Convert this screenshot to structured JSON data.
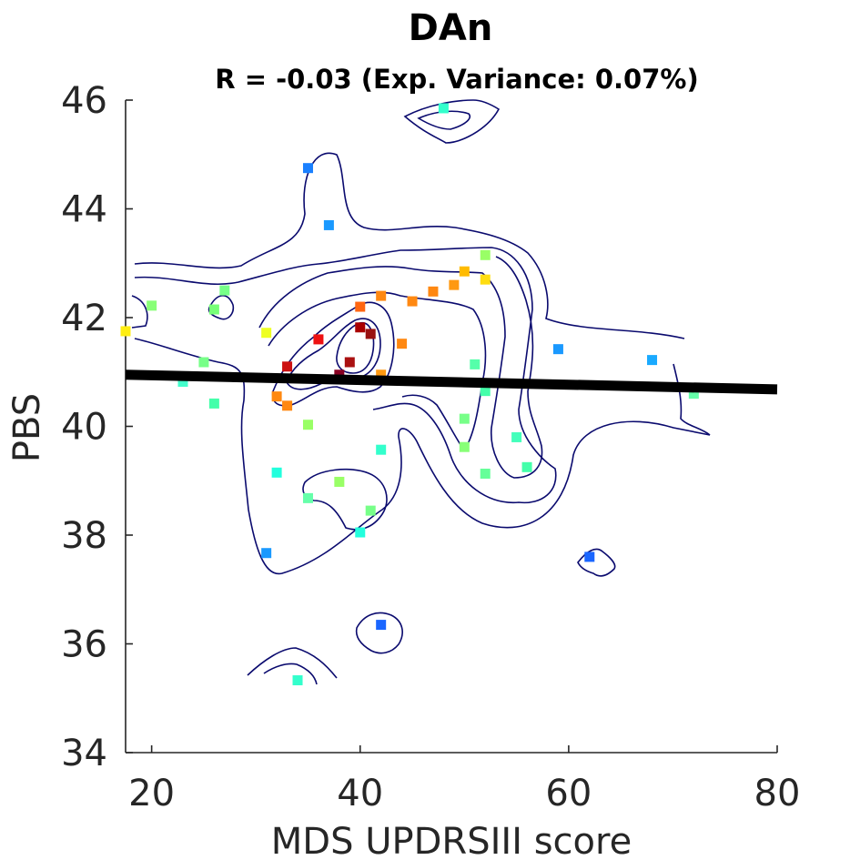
{
  "chart_data": {
    "type": "scatter",
    "title": "DAn",
    "subtitle": "R = -0.03 (Exp. Variance: 0.07%)",
    "xlabel": "MDS UPDRSIII score",
    "ylabel": "PBS",
    "xlim": [
      17.5,
      80
    ],
    "ylim": [
      34,
      46
    ],
    "xticks": [
      "20",
      "40",
      "60",
      "80"
    ],
    "yticks": [
      "34",
      "36",
      "38",
      "40",
      "42",
      "44",
      "46"
    ],
    "regression_line": {
      "x": [
        17.5,
        80
      ],
      "y": [
        40.95,
        40.68
      ],
      "color": "#000000"
    },
    "points": [
      {
        "x": 48,
        "y": 45.85,
        "color": "#33ffcc"
      },
      {
        "x": 35,
        "y": 44.75,
        "color": "#1a80ff"
      },
      {
        "x": 37,
        "y": 43.7,
        "color": "#1a99ff"
      },
      {
        "x": 52,
        "y": 43.15,
        "color": "#99ff66"
      },
      {
        "x": 50,
        "y": 42.85,
        "color": "#ffbb00"
      },
      {
        "x": 52,
        "y": 42.7,
        "color": "#ffdd11"
      },
      {
        "x": 49,
        "y": 42.6,
        "color": "#ff9911"
      },
      {
        "x": 27,
        "y": 42.5,
        "color": "#77ff88"
      },
      {
        "x": 47,
        "y": 42.48,
        "color": "#ff8811"
      },
      {
        "x": 42,
        "y": 42.4,
        "color": "#ff8811"
      },
      {
        "x": 45,
        "y": 42.3,
        "color": "#ff8811"
      },
      {
        "x": 20,
        "y": 42.22,
        "color": "#88ff77"
      },
      {
        "x": 40,
        "y": 42.2,
        "color": "#ff6611"
      },
      {
        "x": 26,
        "y": 42.15,
        "color": "#77ff77"
      },
      {
        "x": 40,
        "y": 41.82,
        "color": "#aa0000"
      },
      {
        "x": 17.5,
        "y": 41.75,
        "color": "#ffee11"
      },
      {
        "x": 31,
        "y": 41.72,
        "color": "#eeff22"
      },
      {
        "x": 41,
        "y": 41.7,
        "color": "#991111"
      },
      {
        "x": 36,
        "y": 41.6,
        "color": "#ee1111"
      },
      {
        "x": 44,
        "y": 41.52,
        "color": "#ff8811"
      },
      {
        "x": 59,
        "y": 41.42,
        "color": "#1a99ff"
      },
      {
        "x": 68,
        "y": 41.22,
        "color": "#1aaaff"
      },
      {
        "x": 25,
        "y": 41.18,
        "color": "#77ff88"
      },
      {
        "x": 39,
        "y": 41.18,
        "color": "#aa1111"
      },
      {
        "x": 51,
        "y": 41.14,
        "color": "#55ffaa"
      },
      {
        "x": 33,
        "y": 41.1,
        "color": "#cc1111"
      },
      {
        "x": 38,
        "y": 40.95,
        "color": "#880022"
      },
      {
        "x": 42,
        "y": 40.95,
        "color": "#ff9911"
      },
      {
        "x": 23,
        "y": 40.82,
        "color": "#44ffcc"
      },
      {
        "x": 52,
        "y": 40.65,
        "color": "#44ffaa"
      },
      {
        "x": 72,
        "y": 40.6,
        "color": "#66ffaa"
      },
      {
        "x": 32,
        "y": 40.55,
        "color": "#ff8811"
      },
      {
        "x": 26,
        "y": 40.42,
        "color": "#44ffaa"
      },
      {
        "x": 33,
        "y": 40.38,
        "color": "#ff8811"
      },
      {
        "x": 50,
        "y": 40.14,
        "color": "#77ff88"
      },
      {
        "x": 35,
        "y": 40.03,
        "color": "#99ff66"
      },
      {
        "x": 55,
        "y": 39.8,
        "color": "#44ffbb"
      },
      {
        "x": 50,
        "y": 39.62,
        "color": "#88ff77"
      },
      {
        "x": 42,
        "y": 39.57,
        "color": "#33ffcc"
      },
      {
        "x": 56,
        "y": 39.25,
        "color": "#44ffaa"
      },
      {
        "x": 32,
        "y": 39.15,
        "color": "#22ffdd"
      },
      {
        "x": 52,
        "y": 39.13,
        "color": "#66ff99"
      },
      {
        "x": 38,
        "y": 38.98,
        "color": "#99ff66"
      },
      {
        "x": 35,
        "y": 38.68,
        "color": "#66ffaa"
      },
      {
        "x": 41,
        "y": 38.45,
        "color": "#77ff88"
      },
      {
        "x": 40,
        "y": 38.05,
        "color": "#22ffdd"
      },
      {
        "x": 31,
        "y": 37.67,
        "color": "#1a99ff"
      },
      {
        "x": 62,
        "y": 37.6,
        "color": "#1a66ff"
      },
      {
        "x": 42,
        "y": 36.35,
        "color": "#1a66ff"
      },
      {
        "x": 34,
        "y": 35.33,
        "color": "#33ffcc"
      }
    ]
  }
}
